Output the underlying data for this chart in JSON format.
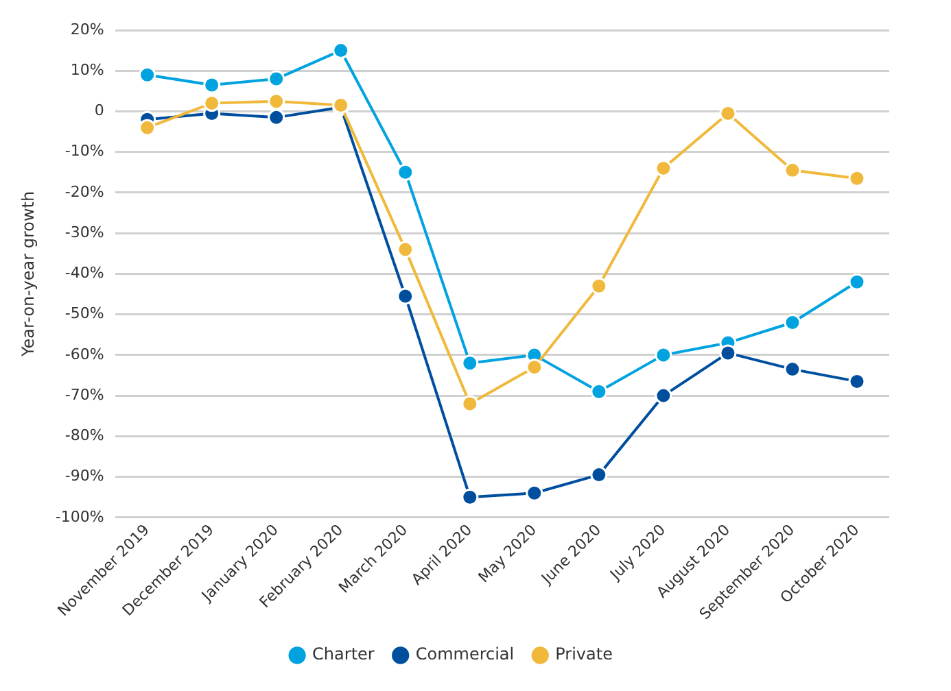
{
  "chart_data": {
    "type": "line",
    "ylabel": "Year-on-year growth",
    "categories": [
      "November 2019",
      "December 2019",
      "January 2020",
      "February 2020",
      "March 2020",
      "April 2020",
      "May 2020",
      "June 2020",
      "July 2020",
      "August 2020",
      "September 2020",
      "October 2020"
    ],
    "series": [
      {
        "name": "Charter",
        "color": "#00a3e0",
        "values": [
          9,
          6.5,
          8,
          15,
          -15,
          -62,
          -60,
          -69,
          -60,
          -57,
          -52,
          -42
        ]
      },
      {
        "name": "Commercial",
        "color": "#004f9f",
        "values": [
          -2,
          -0.5,
          -1.5,
          1,
          -45.5,
          -95,
          -94,
          -89.5,
          -70,
          -59.5,
          -63.5,
          -66.5
        ]
      },
      {
        "name": "Private",
        "color": "#f0b93c",
        "values": [
          -4,
          2,
          2.5,
          1.5,
          -34,
          -72,
          -63,
          -43,
          -14,
          -0.5,
          -14.5,
          -16.5
        ]
      }
    ],
    "ylim": [
      -100,
      20
    ],
    "yticks": [
      {
        "value": 20,
        "label": "20%"
      },
      {
        "value": 10,
        "label": "10%"
      },
      0,
      {
        "value": -10,
        "label": "-10%"
      },
      {
        "value": -20,
        "label": "-20%"
      },
      {
        "value": -30,
        "label": "-30%"
      },
      {
        "value": -40,
        "label": "-40%"
      },
      {
        "value": -50,
        "label": "-50%"
      },
      {
        "value": -60,
        "label": "-60%"
      },
      {
        "value": -70,
        "label": "-70%"
      },
      {
        "value": -80,
        "label": "-80%"
      },
      {
        "value": -90,
        "label": "-90%"
      },
      {
        "value": -100,
        "label": "-100%"
      }
    ],
    "grid": "y",
    "legend": "bottom",
    "marker": "circle",
    "line_style": "solid"
  }
}
